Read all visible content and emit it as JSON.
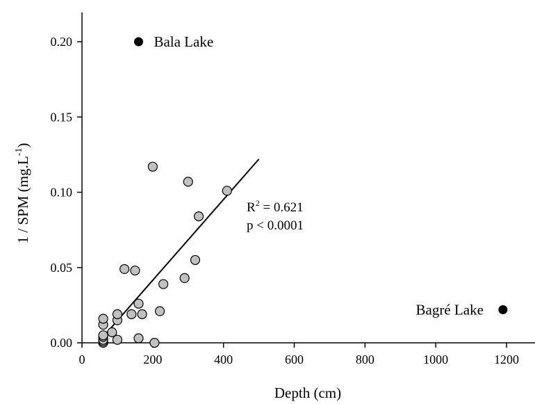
{
  "chart_data": {
    "type": "scatter",
    "title": "",
    "xlabel": "Depth (cm)",
    "ylabel": {
      "main": "1 / SPM (mg.L",
      "sup": "-1",
      "close": ")"
    },
    "xlim": [
      0,
      1280
    ],
    "ylim": [
      0,
      0.22
    ],
    "xticks": [
      0,
      200,
      400,
      600,
      800,
      1000,
      1200
    ],
    "xtick_labels": [
      "0",
      "200",
      "400",
      "600",
      "800",
      "1000",
      "1200"
    ],
    "yticks": [
      0,
      0.05,
      0.1,
      0.15,
      0.2
    ],
    "ytick_labels": [
      "0.00",
      "0.05",
      "0.10",
      "0.15",
      "0.20"
    ],
    "grid": false,
    "series": [
      {
        "marker": "circle-grey",
        "color": "#c0c0c0",
        "points": [
          {
            "x": 60,
            "y": 0.0
          },
          {
            "x": 60,
            "y": 0.001
          },
          {
            "x": 60,
            "y": 0.002
          },
          {
            "x": 60,
            "y": 0.004
          },
          {
            "x": 60,
            "y": 0.005
          },
          {
            "x": 60,
            "y": 0.012
          },
          {
            "x": 60,
            "y": 0.016
          },
          {
            "x": 85,
            "y": 0.007
          },
          {
            "x": 100,
            "y": 0.002
          },
          {
            "x": 100,
            "y": 0.015
          },
          {
            "x": 100,
            "y": 0.019
          },
          {
            "x": 120,
            "y": 0.049
          },
          {
            "x": 140,
            "y": 0.019
          },
          {
            "x": 150,
            "y": 0.048
          },
          {
            "x": 160,
            "y": 0.026
          },
          {
            "x": 160,
            "y": 0.003
          },
          {
            "x": 170,
            "y": 0.019
          },
          {
            "x": 200,
            "y": 0.117
          },
          {
            "x": 205,
            "y": 0.0
          },
          {
            "x": 220,
            "y": 0.021
          },
          {
            "x": 230,
            "y": 0.039
          },
          {
            "x": 290,
            "y": 0.043
          },
          {
            "x": 300,
            "y": 0.107
          },
          {
            "x": 320,
            "y": 0.055
          },
          {
            "x": 330,
            "y": 0.084
          },
          {
            "x": 410,
            "y": 0.101
          }
        ]
      },
      {
        "marker": "circle-black",
        "color": "#000000",
        "points": [
          {
            "x": 160,
            "y": 0.2,
            "label": "Bala Lake",
            "label_side": "right"
          },
          {
            "x": 1190,
            "y": 0.022,
            "label": "Bagré Lake",
            "label_side": "left"
          }
        ]
      }
    ],
    "regression_line": {
      "x": [
        60,
        500
      ],
      "y": [
        0.004,
        0.122
      ]
    },
    "annotation": {
      "r2_prefix": "R",
      "r2_sup": "2",
      "r2_value": " = 0.621",
      "p_text": "p < 0.0001"
    }
  }
}
